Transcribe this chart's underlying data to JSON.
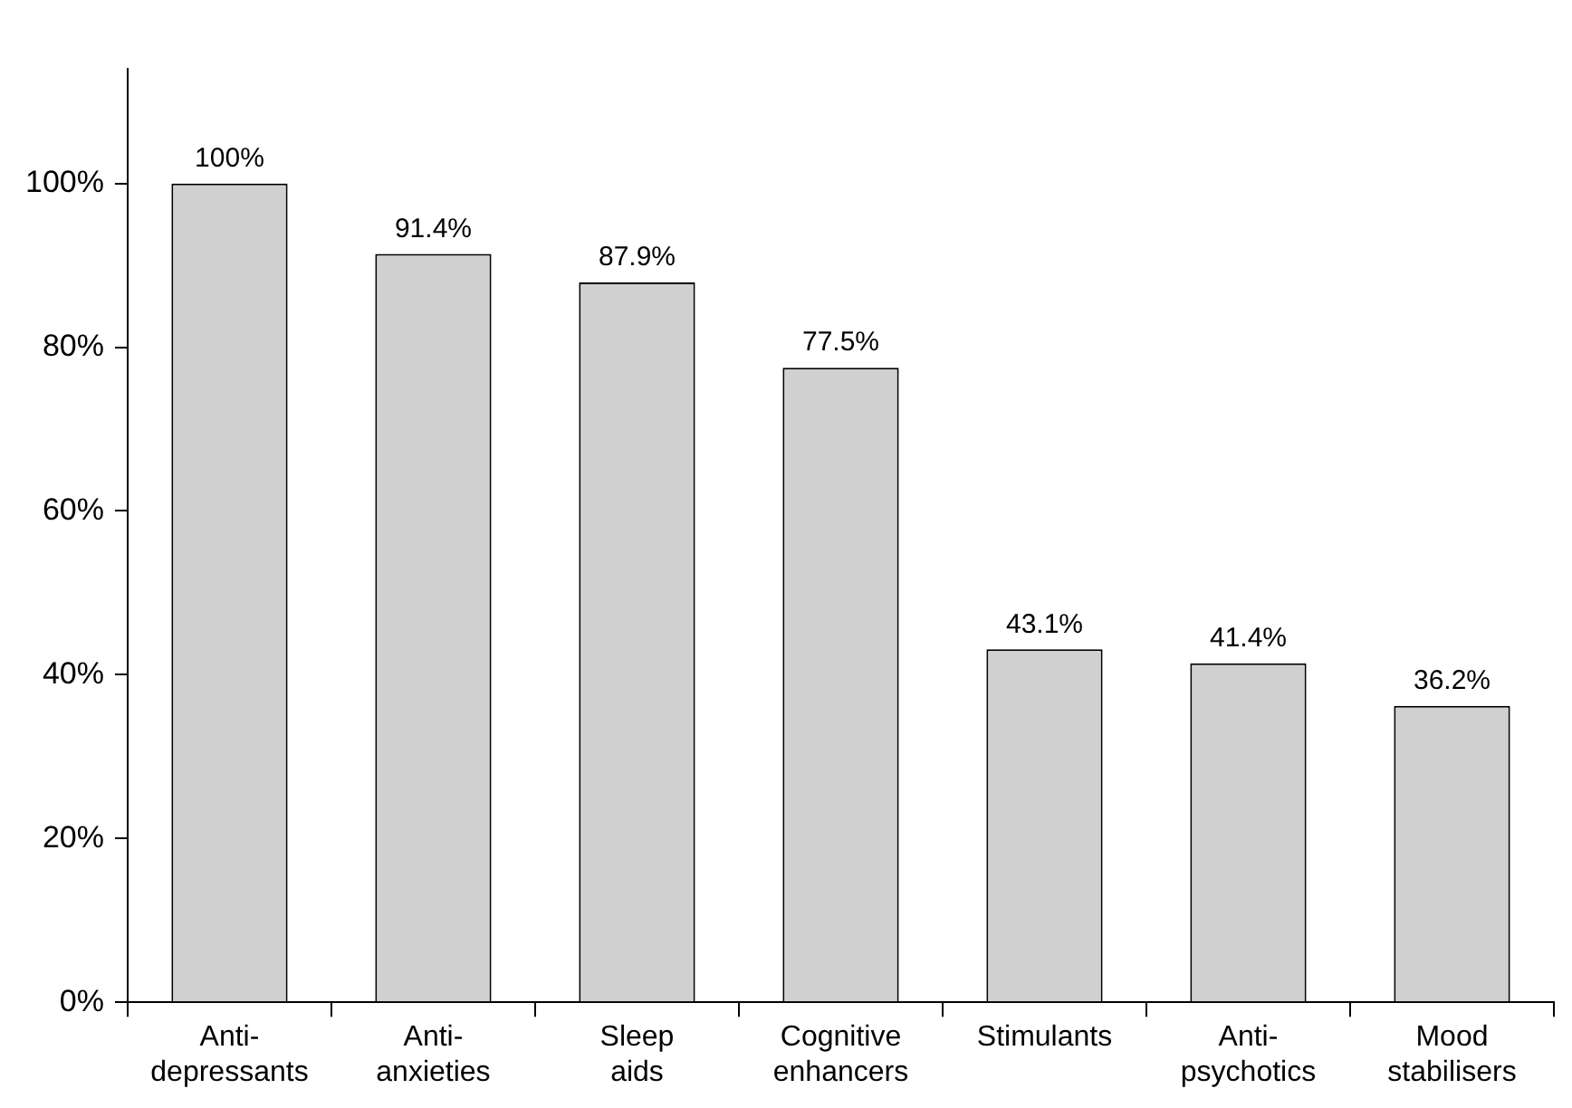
{
  "chart_data": {
    "type": "bar",
    "categories": [
      "Anti-\ndepressants",
      "Anti-\nanxieties",
      "Sleep\naids",
      "Cognitive\nenhancers",
      "Stimulants",
      "Anti-\npsychotics",
      "Mood\nstabilisers"
    ],
    "values": [
      100,
      91.4,
      87.9,
      77.5,
      43.1,
      41.4,
      36.2
    ],
    "value_labels": [
      "100%",
      "91.4%",
      "87.9%",
      "77.5%",
      "43.1%",
      "41.4%",
      "36.2%"
    ],
    "color": "#d0d0d0",
    "ylim": [
      0,
      114
    ],
    "yticks": [
      {
        "value": 0,
        "label": "0%"
      },
      {
        "value": 20,
        "label": "20%"
      },
      {
        "value": 40,
        "label": "40%"
      },
      {
        "value": 60,
        "label": "60%"
      },
      {
        "value": 80,
        "label": "80%"
      },
      {
        "value": 100,
        "label": "100%"
      }
    ],
    "grid": false
  }
}
